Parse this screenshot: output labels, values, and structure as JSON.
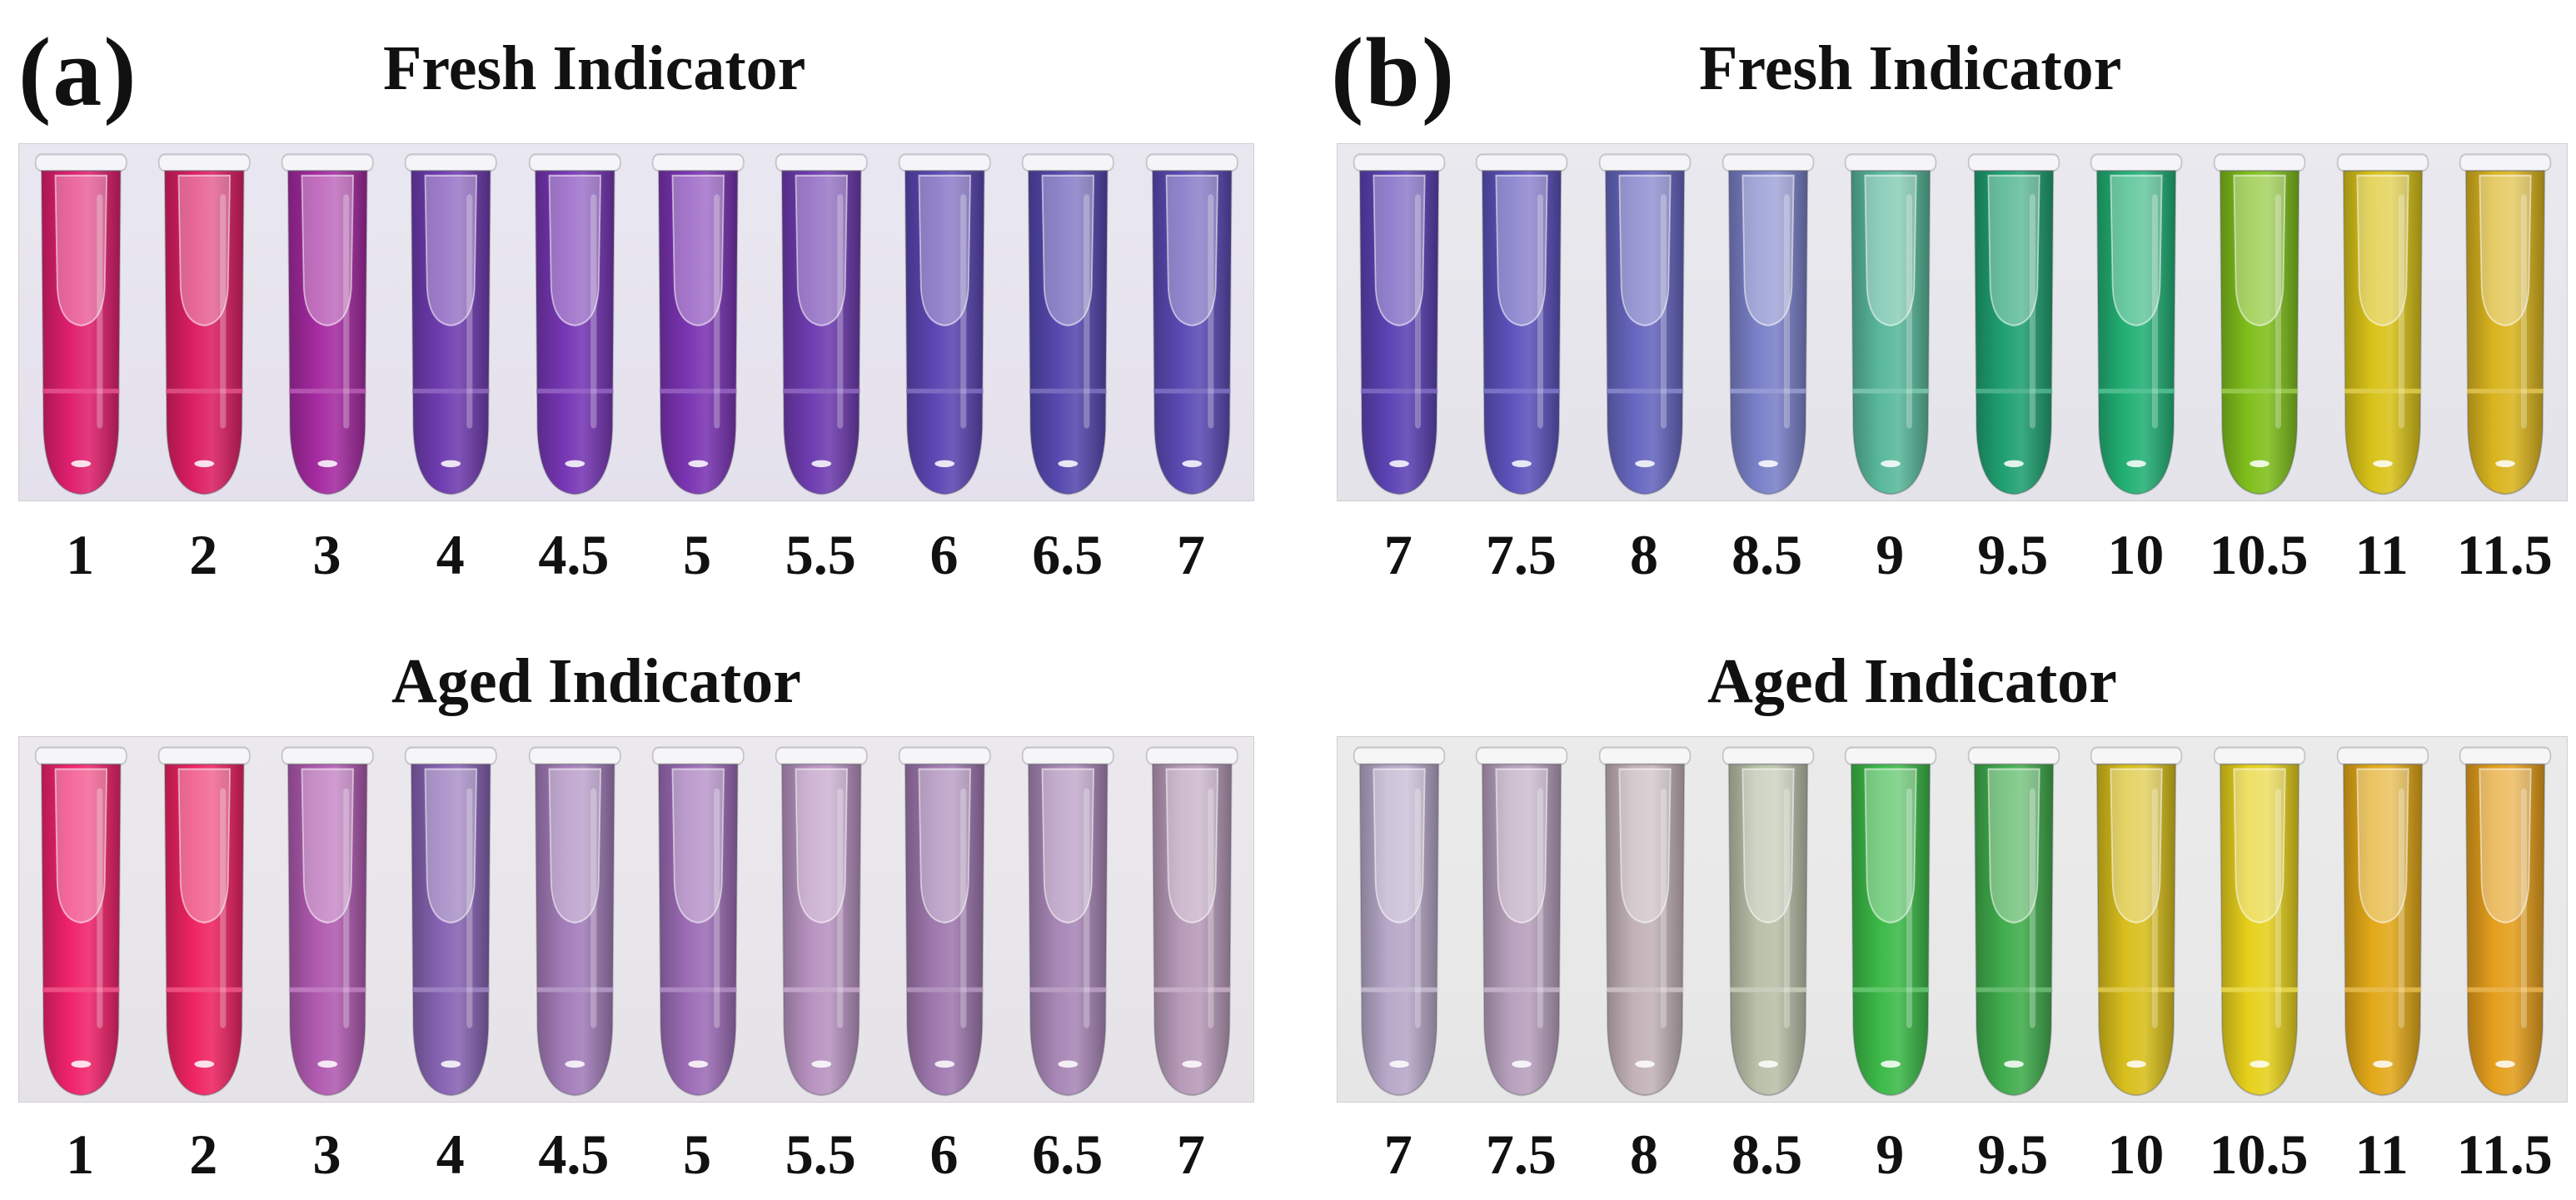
{
  "panels": [
    {
      "id": "a",
      "letter": "(a)",
      "groups": [
        {
          "title": "Fresh Indicator",
          "background": "#e4e1ec",
          "tubes": [
            {
              "label": "1",
              "color": "#e01f6e"
            },
            {
              "label": "2",
              "color": "#dc1f62"
            },
            {
              "label": "3",
              "color": "#a42aa0"
            },
            {
              "label": "4",
              "color": "#6f3cb0"
            },
            {
              "label": "4.5",
              "color": "#7636b4"
            },
            {
              "label": "5",
              "color": "#7a34b2"
            },
            {
              "label": "5.5",
              "color": "#6e3cb0"
            },
            {
              "label": "6",
              "color": "#5a46b2"
            },
            {
              "label": "6.5",
              "color": "#5448ae"
            },
            {
              "label": "7",
              "color": "#5a4ab4"
            }
          ]
        },
        {
          "title": "Aged Indicator",
          "background": "#e6e3e8",
          "tubes": [
            {
              "label": "1",
              "color": "#f0236a"
            },
            {
              "label": "2",
              "color": "#ee2462"
            },
            {
              "label": "3",
              "color": "#b05ab0"
            },
            {
              "label": "4",
              "color": "#8663b2"
            },
            {
              "label": "4.5",
              "color": "#a27cb8"
            },
            {
              "label": "5",
              "color": "#9c6cb6"
            },
            {
              "label": "5.5",
              "color": "#b792c0"
            },
            {
              "label": "6",
              "color": "#9e78ae"
            },
            {
              "label": "6.5",
              "color": "#a886b6"
            },
            {
              "label": "7",
              "color": "#b79ab8"
            }
          ]
        }
      ]
    },
    {
      "id": "b",
      "letter": "(b)",
      "groups": [
        {
          "title": "Fresh Indicator",
          "background": "#e4e3ea",
          "tubes": [
            {
              "label": "7",
              "color": "#5c42b4"
            },
            {
              "label": "7.5",
              "color": "#5c52bc"
            },
            {
              "label": "8",
              "color": "#6666c0"
            },
            {
              "label": "8.5",
              "color": "#7a80c8"
            },
            {
              "label": "9",
              "color": "#58b89a"
            },
            {
              "label": "9.5",
              "color": "#1fa070"
            },
            {
              "label": "10",
              "color": "#22b074"
            },
            {
              "label": "10.5",
              "color": "#7fbf1c"
            },
            {
              "label": "11",
              "color": "#d8c218"
            },
            {
              "label": "11.5",
              "color": "#d9b41e"
            }
          ]
        },
        {
          "title": "Aged Indicator",
          "background": "#e6e6e6",
          "tubes": [
            {
              "label": "7",
              "color": "#b7a8c8"
            },
            {
              "label": "7.5",
              "color": "#b7a0bc"
            },
            {
              "label": "8",
              "color": "#c2b2b8"
            },
            {
              "label": "8.5",
              "color": "#b8c0a8"
            },
            {
              "label": "9",
              "color": "#3cb948"
            },
            {
              "label": "9.5",
              "color": "#40ac4c"
            },
            {
              "label": "10",
              "color": "#d8be1c"
            },
            {
              "label": "10.5",
              "color": "#e6d01c"
            },
            {
              "label": "11",
              "color": "#e2a818"
            },
            {
              "label": "11.5",
              "color": "#e49e1c"
            }
          ]
        }
      ]
    }
  ]
}
